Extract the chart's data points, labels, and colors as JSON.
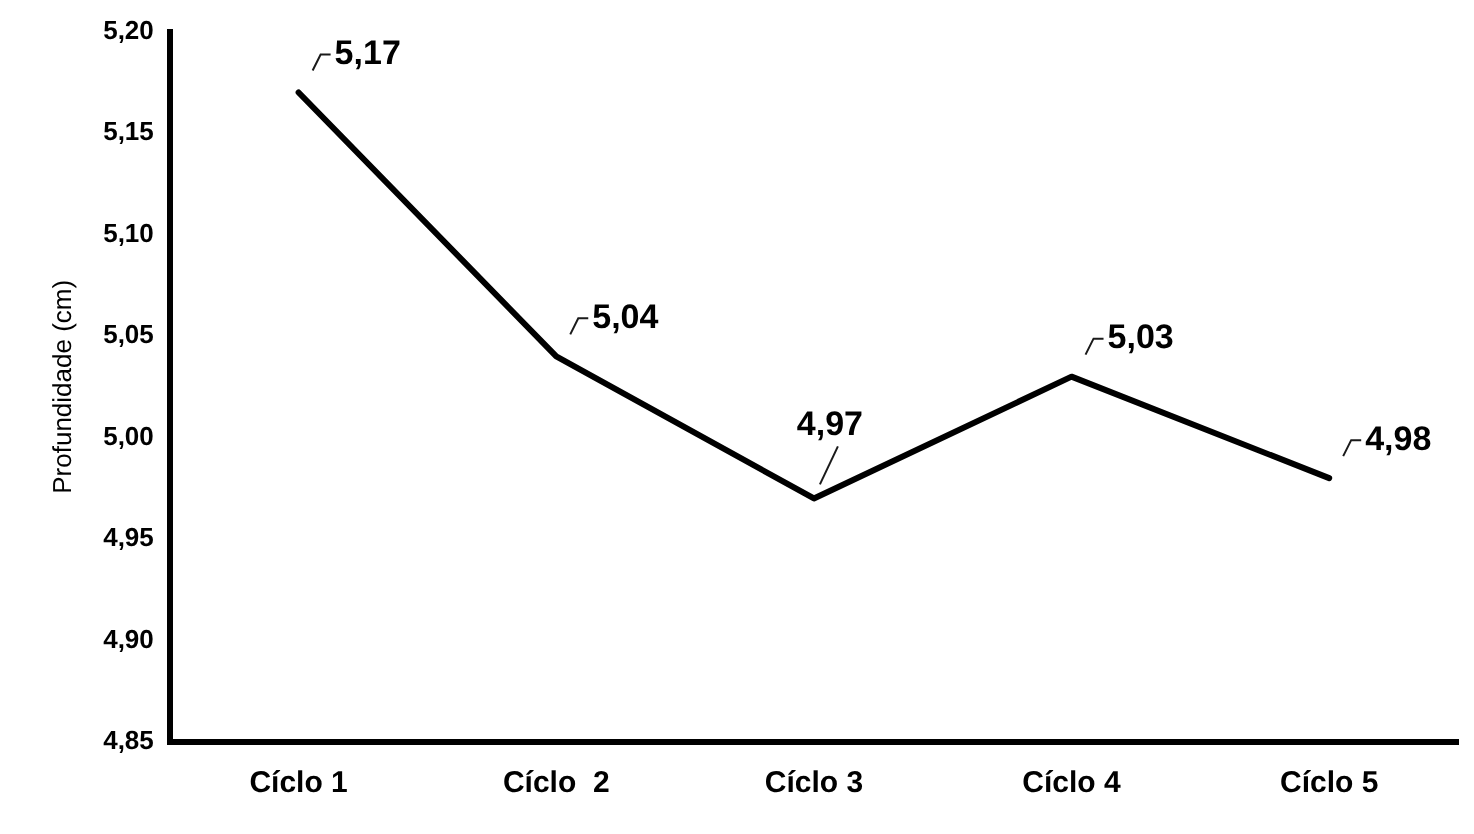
{
  "chart_data": {
    "type": "line",
    "ylabel": "Profundidade (cm)",
    "categories": [
      "Cíclo 1",
      "Cíclo  2",
      "Cíclo 3",
      "Cíclo 4",
      "Cíclo 5"
    ],
    "series": [
      {
        "color": "#000000",
        "values": [
          5.17,
          5.04,
          4.97,
          5.03,
          4.98
        ],
        "value_labels": [
          "5,17",
          "5,04",
          "4,97",
          "5,03",
          "4,98"
        ]
      }
    ],
    "ylim": [
      4.85,
      5.2
    ],
    "yticks": [
      {
        "value": 4.85,
        "label": "4,85"
      },
      {
        "value": 4.9,
        "label": "4,90"
      },
      {
        "value": 4.95,
        "label": "4,95"
      },
      {
        "value": 5.0,
        "label": "5,00"
      },
      {
        "value": 5.05,
        "label": "5,05"
      },
      {
        "value": 5.1,
        "label": "5,10"
      },
      {
        "value": 5.15,
        "label": "5,15"
      },
      {
        "value": 5.2,
        "label": "5,20"
      }
    ],
    "grid": false,
    "legend": false,
    "marker": "none",
    "line_style": "solid"
  }
}
